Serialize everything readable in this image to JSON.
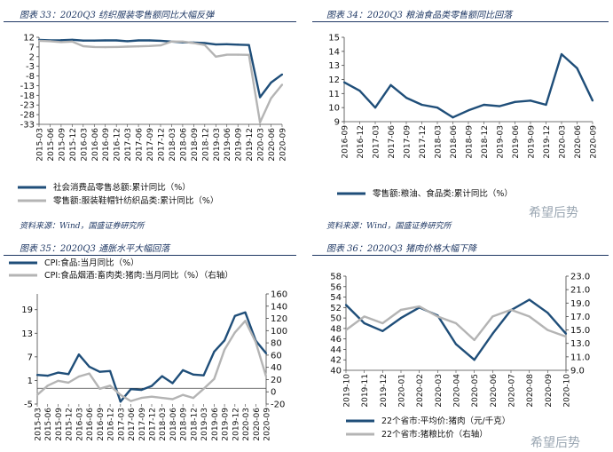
{
  "panels": [
    {
      "title": "图表 33：2020Q3 纺织服装零售额同比大幅反弹"
    },
    {
      "title": "图表 34：2020Q3 粮油食品类零售额同比回落"
    },
    {
      "title": "图表 35：2020Q3 通胀水平大幅回落"
    },
    {
      "title": "图表 36：2020Q3 猪肉价格大幅下降"
    }
  ],
  "sources": [
    "资料来源：Wind，国盛证券研究所",
    "资料来源：Wind，国盛证券研究所"
  ],
  "watermarks": [
    "希望后势",
    "希望后势"
  ],
  "colors": {
    "dark": "#1f4e79",
    "light": "#b4b4b4",
    "title": "#1f3864"
  },
  "chart_data": [
    {
      "type": "line",
      "x": [
        "2015-03",
        "2015-06",
        "2015-09",
        "2015-12",
        "2016-03",
        "2016-06",
        "2016-09",
        "2016-12",
        "2017-03",
        "2017-06",
        "2017-09",
        "2017-12",
        "2018-03",
        "2018-06",
        "2018-09",
        "2018-12",
        "2019-03",
        "2019-06",
        "2019-09",
        "2019-12",
        "2020-03",
        "2020-06",
        "2020-09"
      ],
      "ylim": [
        -33,
        12
      ],
      "yticks": [
        12,
        7,
        2,
        -3,
        -8,
        -13,
        -18,
        -23,
        -28,
        -33
      ],
      "series": [
        {
          "name": "社会消费品零售总额:累计同比（%）",
          "values": [
            10.6,
            10.4,
            10.5,
            10.7,
            10.3,
            10.3,
            10.4,
            10.4,
            10.0,
            10.4,
            10.4,
            10.2,
            9.8,
            9.4,
            9.3,
            9.0,
            8.3,
            8.4,
            8.2,
            8.0,
            -19.0,
            -11.4,
            -7.2
          ]
        },
        {
          "name": "零售额:服装鞋帽针纺织品类:累计同比（%）",
          "values": [
            10.2,
            10.0,
            9.5,
            9.8,
            7.4,
            7.0,
            6.9,
            7.0,
            7.2,
            7.3,
            7.5,
            7.8,
            9.8,
            9.8,
            9.0,
            8.0,
            2.0,
            3.0,
            3.0,
            2.9,
            -32.0,
            -19.6,
            -12.5
          ]
        }
      ]
    },
    {
      "type": "line",
      "x": [
        "2016-09",
        "2016-12",
        "2017-03",
        "2017-06",
        "2017-09",
        "2017-12",
        "2018-03",
        "2018-06",
        "2018-09",
        "2018-12",
        "2019-03",
        "2019-06",
        "2019-09",
        "2019-12",
        "2020-03",
        "2020-06",
        "2020-09"
      ],
      "ylim": [
        9,
        15
      ],
      "yticks": [
        9,
        10,
        11,
        12,
        13,
        14,
        15
      ],
      "series": [
        {
          "name": "零售额:粮油、食品类:累计同比（%）",
          "values": [
            11.8,
            11.2,
            10.0,
            11.6,
            10.7,
            10.2,
            10.0,
            9.3,
            9.8,
            10.2,
            10.1,
            10.4,
            10.5,
            10.2,
            13.8,
            12.8,
            10.5
          ]
        }
      ]
    },
    {
      "type": "line",
      "x": [
        "2015-03",
        "2015-06",
        "2015-09",
        "2015-12",
        "2016-03",
        "2016-06",
        "2016-09",
        "2016-12",
        "2017-03",
        "2017-06",
        "2017-09",
        "2017-12",
        "2018-03",
        "2018-06",
        "2018-09",
        "2018-12",
        "2019-03",
        "2019-06",
        "2019-09",
        "2019-12",
        "2020-03",
        "2020-06",
        "2020-09"
      ],
      "ylim": [
        -5,
        23
      ],
      "yticks": [
        -5,
        1,
        7,
        13,
        19
      ],
      "y2lim": [
        -20,
        160
      ],
      "y2ticks": [
        -20,
        0,
        20,
        40,
        60,
        80,
        100,
        120,
        140,
        160
      ],
      "series": [
        {
          "name": "CPI:食品:当月同比（%）",
          "axis": "left",
          "values": [
            2.4,
            2.2,
            3.0,
            2.6,
            7.6,
            4.5,
            3.2,
            3.4,
            -4.4,
            -1.2,
            -1.4,
            -0.4,
            2.1,
            0.3,
            3.6,
            2.5,
            2.3,
            8.3,
            11.2,
            17.4,
            18.3,
            11.1,
            7.9
          ]
        },
        {
          "name": "CPI:食品烟酒:畜肉类:猪肉:当月同比（%）（右轴）",
          "axis": "right",
          "values": [
            -5,
            10,
            18,
            15,
            25,
            30,
            5,
            10,
            -5,
            -15,
            -10,
            -8,
            -10,
            -12,
            -5,
            -10,
            5,
            21,
            69,
            97,
            116,
            81,
            25
          ]
        }
      ]
    },
    {
      "type": "line",
      "x": [
        "2019-10",
        "2019-11",
        "2019-12",
        "2020-01",
        "2020-02",
        "2020-03",
        "2020-04",
        "2020-05",
        "2020-06",
        "2020-07",
        "2020-08",
        "2020-09",
        "2020-10"
      ],
      "ylim": [
        40,
        58
      ],
      "yticks": [
        40,
        42,
        44,
        46,
        48,
        50,
        52,
        54,
        56,
        58
      ],
      "y2lim": [
        9.0,
        23.0
      ],
      "y2ticks": [
        9.0,
        11.0,
        13.0,
        15.0,
        17.0,
        19.0,
        21.0,
        23.0
      ],
      "series": [
        {
          "name": "22个省市:平均价:猪肉（元/千克）",
          "axis": "left",
          "values": [
            52.5,
            49,
            47.5,
            50,
            52,
            50.5,
            45,
            42,
            47,
            51.5,
            53.5,
            51,
            47
          ]
        },
        {
          "name": "22个省市:猪粮比价（右轴）",
          "axis": "right",
          "values": [
            15,
            17,
            16,
            18,
            18.5,
            17,
            16,
            13.5,
            17,
            18,
            17,
            15,
            14
          ]
        }
      ]
    }
  ]
}
